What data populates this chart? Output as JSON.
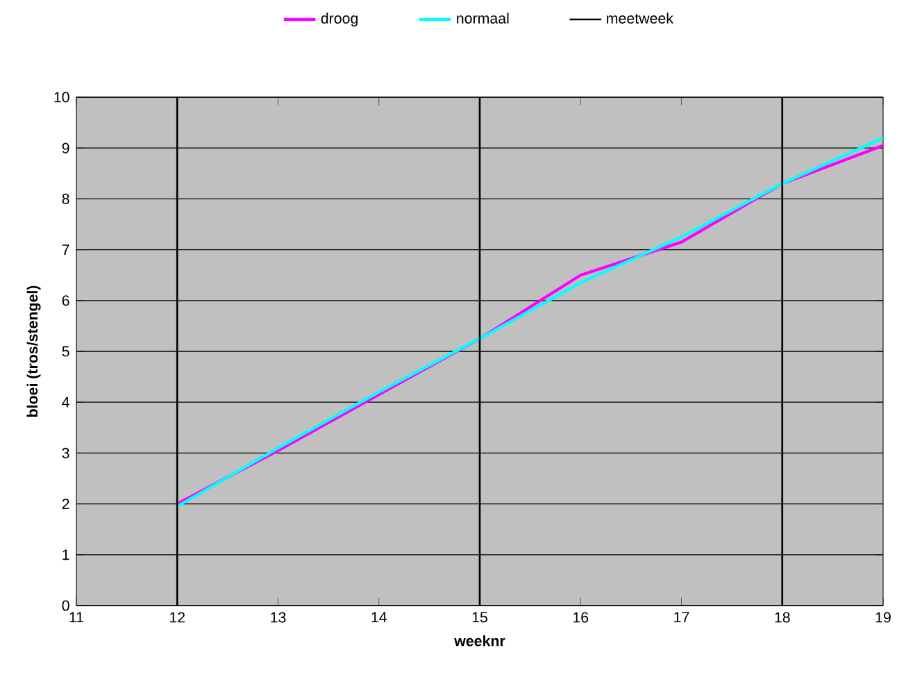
{
  "chart_data": {
    "type": "line",
    "xlabel": "weeknr",
    "ylabel": "bloei (tros/stengel)",
    "x": [
      12,
      13,
      14,
      15,
      16,
      17,
      18,
      19
    ],
    "series": [
      {
        "name": "droog",
        "color": "#ff00ff",
        "values": [
          2.0,
          3.05,
          4.15,
          5.25,
          6.5,
          7.15,
          8.3,
          9.05
        ]
      },
      {
        "name": "normaal",
        "color": "#00ffff",
        "values": [
          1.95,
          3.1,
          4.2,
          5.25,
          6.35,
          7.25,
          8.3,
          9.2
        ]
      }
    ],
    "ref_lines": [
      {
        "axis": "x",
        "value": 12,
        "label": "meetweek",
        "color": "#000000"
      },
      {
        "axis": "x",
        "value": 15,
        "color": "#000000"
      },
      {
        "axis": "x",
        "value": 18,
        "color": "#000000"
      }
    ],
    "xlim": [
      11,
      19
    ],
    "xticks": [
      11,
      12,
      13,
      14,
      15,
      16,
      17,
      18,
      19
    ],
    "ylim": [
      0,
      10
    ],
    "yticks": [
      0,
      1,
      2,
      3,
      4,
      5,
      6,
      7,
      8,
      9,
      10
    ],
    "grid": "y",
    "legend": "top",
    "marker": "none",
    "line_style": "solid"
  }
}
